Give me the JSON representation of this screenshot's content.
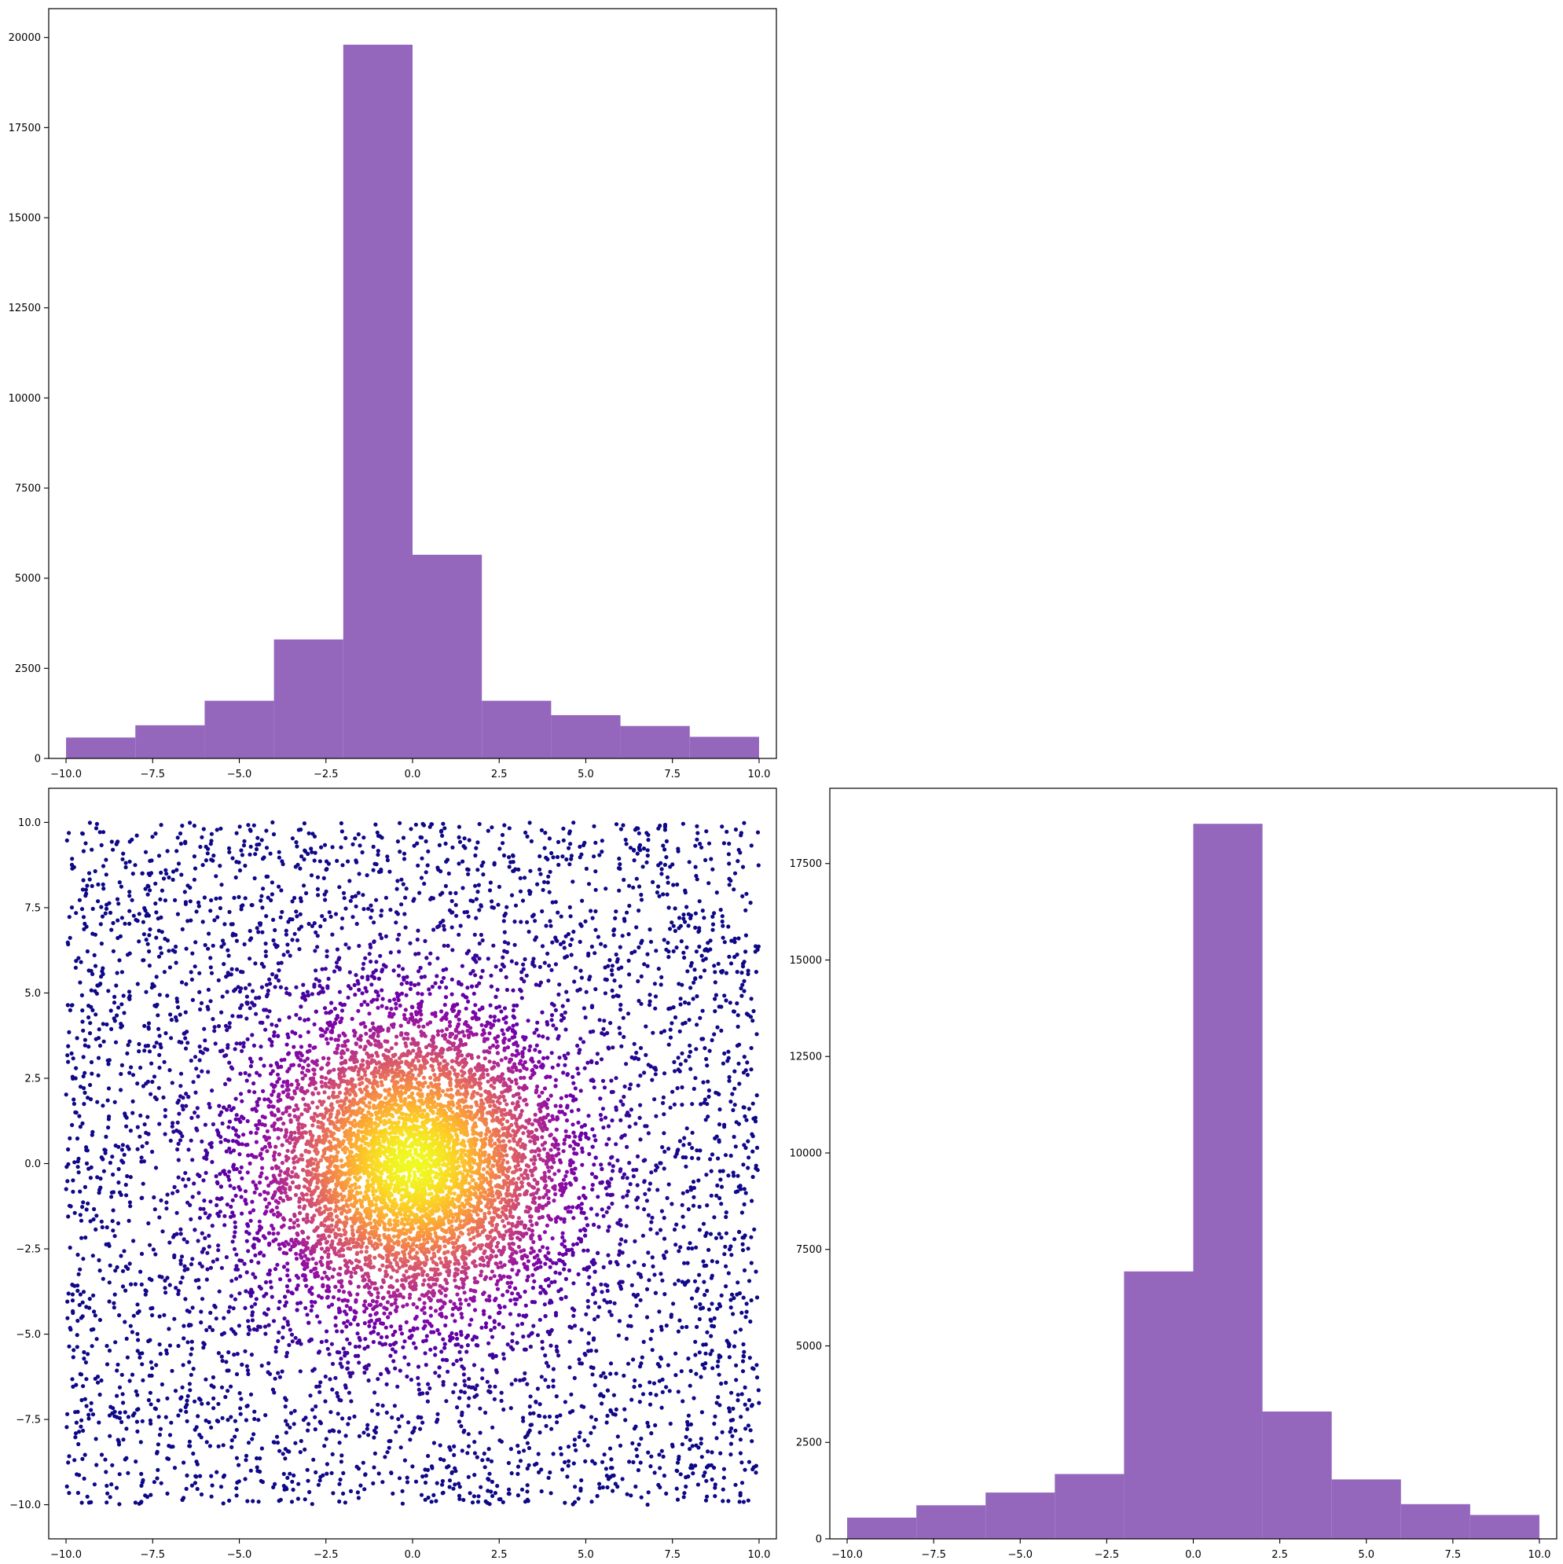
{
  "chart_data": [
    {
      "id": "hist-top",
      "type": "bar",
      "histogram": true,
      "bin_edges": [
        -10,
        -8,
        -6,
        -4,
        -2,
        0,
        2,
        4,
        6,
        8,
        10
      ],
      "values": [
        580,
        920,
        1600,
        3300,
        19800,
        5650,
        1600,
        1200,
        900,
        600
      ],
      "color": "#9467bd",
      "xlim": [
        -10.5,
        10.5
      ],
      "ylim": [
        0,
        20800
      ],
      "xticks": [
        -10,
        -7.5,
        -5,
        -2.5,
        0,
        2.5,
        5,
        7.5,
        10
      ],
      "xtick_labels": [
        "−10.0",
        "−7.5",
        "−5.0",
        "−2.5",
        "0.0",
        "2.5",
        "5.0",
        "7.5",
        "10.0"
      ],
      "yticks": [
        0,
        2500,
        5000,
        7500,
        10000,
        12500,
        15000,
        17500,
        20000
      ],
      "ytick_labels": [
        "0",
        "2500",
        "5000",
        "7500",
        "10000",
        "12500",
        "15000",
        "17500",
        "20000"
      ],
      "grid": false
    },
    {
      "id": "scatter",
      "type": "scatter",
      "n_points": 11000,
      "x_range": [
        -10,
        10
      ],
      "y_range": [
        -10,
        10
      ],
      "center": [
        0,
        0
      ],
      "colormap": "plasma",
      "color_encoding": "density",
      "marker_color_outer": "#2a0593",
      "marker_color_center": "#f0f921",
      "xlim": [
        -10.5,
        10.5
      ],
      "ylim": [
        -11,
        11
      ],
      "xticks": [
        -10,
        -7.5,
        -5,
        -2.5,
        0,
        2.5,
        5,
        7.5,
        10
      ],
      "xtick_labels": [
        "−10.0",
        "−7.5",
        "−5.0",
        "−2.5",
        "0.0",
        "2.5",
        "5.0",
        "7.5",
        "10.0"
      ],
      "yticks": [
        -10,
        -7.5,
        -5,
        -2.5,
        0,
        2.5,
        5,
        7.5,
        10
      ],
      "ytick_labels": [
        "−10.0",
        "−7.5",
        "−5.0",
        "−2.5",
        "0.0",
        "2.5",
        "5.0",
        "7.5",
        "10.0"
      ],
      "grid": false
    },
    {
      "id": "hist-right",
      "type": "bar",
      "histogram": true,
      "bin_edges": [
        -10,
        -8,
        -6,
        -4,
        -2,
        0,
        2,
        4,
        6,
        8,
        10
      ],
      "values": [
        550,
        870,
        1200,
        1680,
        6930,
        18530,
        3300,
        1540,
        900,
        620
      ],
      "color": "#9467bd",
      "xlim": [
        -10.5,
        10.5
      ],
      "ylim": [
        0,
        19450
      ],
      "xticks": [
        -10,
        -7.5,
        -5,
        -2.5,
        0,
        2.5,
        5,
        7.5,
        10
      ],
      "xtick_labels": [
        "−10.0",
        "−7.5",
        "−5.0",
        "−2.5",
        "0.0",
        "2.5",
        "5.0",
        "7.5",
        "10.0"
      ],
      "yticks": [
        0,
        2500,
        5000,
        7500,
        10000,
        12500,
        15000,
        17500
      ],
      "ytick_labels": [
        "0",
        "2500",
        "5000",
        "7500",
        "10000",
        "12500",
        "15000",
        "17500"
      ],
      "grid": false
    }
  ]
}
